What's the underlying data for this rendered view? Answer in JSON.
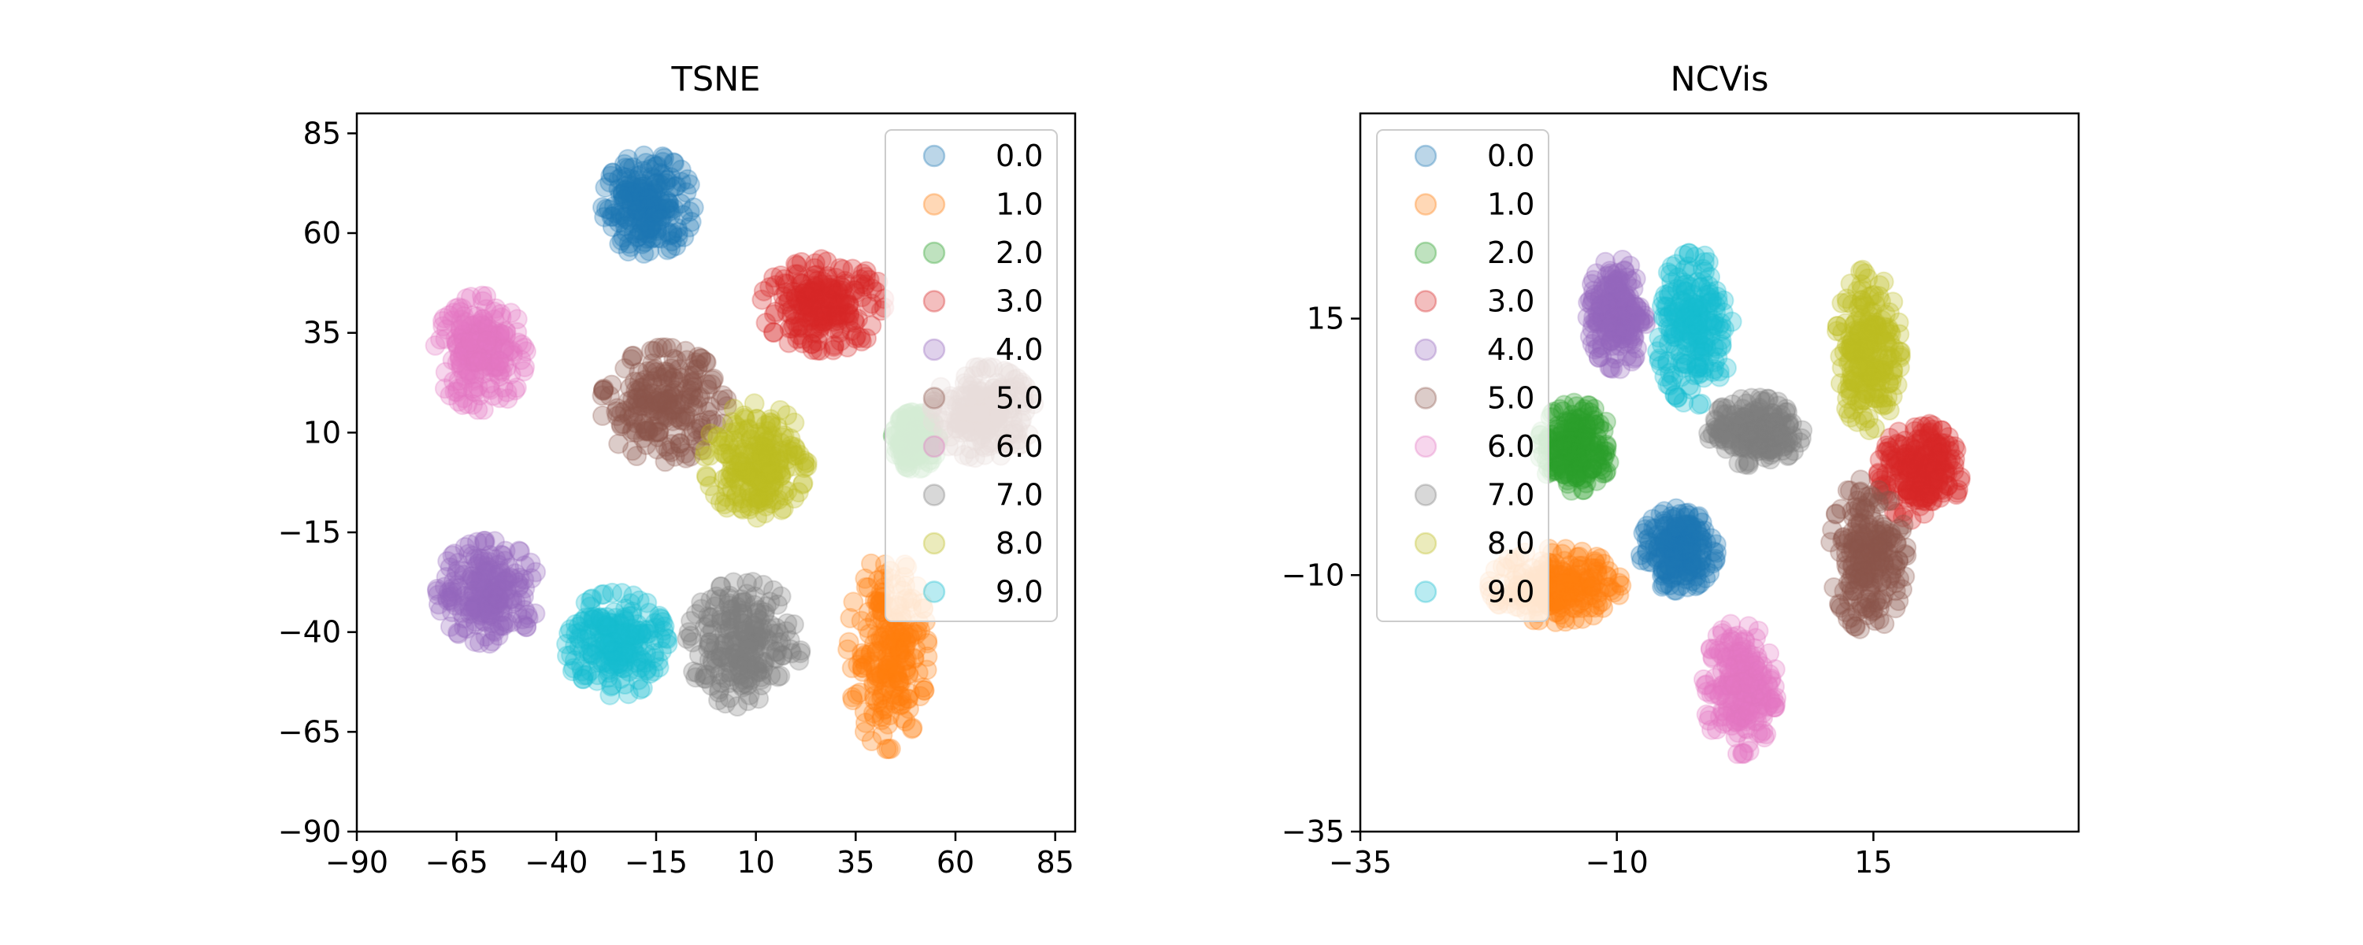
{
  "palette": [
    "#1f77b4",
    "#ff7f0e",
    "#2ca02c",
    "#d62728",
    "#9467bd",
    "#8c564b",
    "#e377c2",
    "#7f7f7f",
    "#bcbd22",
    "#17becf"
  ],
  "legend_labels": [
    "0.0",
    "1.0",
    "2.0",
    "3.0",
    "4.0",
    "5.0",
    "6.0",
    "7.0",
    "8.0",
    "9.0"
  ],
  "chart_data": [
    {
      "type": "scatter",
      "title": "TSNE",
      "xlabel": "",
      "ylabel": "",
      "xlim": [
        -90,
        90
      ],
      "ylim": [
        -90,
        90
      ],
      "xticks": [
        -90,
        -65,
        -40,
        -15,
        10,
        35,
        60,
        85
      ],
      "yticks": [
        -90,
        -65,
        -40,
        -15,
        10,
        35,
        60,
        85
      ],
      "xtick_labels": [
        "−90",
        "−65",
        "−40",
        "−15",
        "10",
        "35",
        "60",
        "85"
      ],
      "ytick_labels": [
        "−90",
        "−65",
        "−40",
        "−15",
        "10",
        "35",
        "60",
        "85"
      ],
      "grid": false,
      "legend": "top-right",
      "point_alpha": 0.3,
      "clusters": [
        {
          "label": "0.0",
          "center": [
            -17,
            67
          ],
          "spread": [
            8,
            9
          ]
        },
        {
          "label": "1.0",
          "center": [
            43,
            -45
          ],
          "spread": [
            7,
            17
          ]
        },
        {
          "label": "2.0",
          "center": [
            50,
            8
          ],
          "spread": [
            4,
            5
          ]
        },
        {
          "label": "3.0",
          "center": [
            27,
            42
          ],
          "spread": [
            11,
            8
          ]
        },
        {
          "label": "4.0",
          "center": [
            -57,
            -30
          ],
          "spread": [
            9,
            9
          ]
        },
        {
          "label": "5.0",
          "center": [
            -13,
            17
          ],
          "spread": [
            11,
            10
          ]
        },
        {
          "label": "6.0",
          "center": [
            -59,
            30
          ],
          "spread": [
            8,
            10
          ]
        },
        {
          "label": "7.0",
          "center": [
            7,
            -43
          ],
          "spread": [
            10,
            11
          ]
        },
        {
          "label": "8.0",
          "center": [
            10,
            3
          ],
          "spread": [
            9,
            10
          ]
        },
        {
          "label": "9.0",
          "center": [
            -25,
            -43
          ],
          "spread": [
            9,
            9
          ]
        },
        {
          "label": "5.0",
          "center": [
            67,
            15
          ],
          "spread": [
            9,
            8
          ]
        }
      ]
    },
    {
      "type": "scatter",
      "title": "NCVis",
      "xlabel": "",
      "ylabel": "",
      "xlim": [
        -35,
        35
      ],
      "ylim": [
        -35,
        35
      ],
      "xticks": [
        -35,
        -10,
        15
      ],
      "yticks": [
        -35,
        -10,
        15
      ],
      "xtick_labels": [
        "−35",
        "−10",
        "15"
      ],
      "ytick_labels": [
        "−35",
        "−10",
        "15"
      ],
      "grid": false,
      "legend": "top-left",
      "point_alpha": 0.3,
      "clusters": [
        {
          "label": "0.0",
          "center": [
            -4,
            -7.5
          ],
          "spread": [
            2.6,
            2.8
          ]
        },
        {
          "label": "1.0",
          "center": [
            -16,
            -11
          ],
          "spread": [
            4.5,
            2.5
          ]
        },
        {
          "label": "2.0",
          "center": [
            -14,
            2.5
          ],
          "spread": [
            2.5,
            3
          ]
        },
        {
          "label": "3.0",
          "center": [
            19.5,
            0
          ],
          "spread": [
            2.8,
            3.4
          ]
        },
        {
          "label": "4.0",
          "center": [
            -10,
            15.5
          ],
          "spread": [
            2,
            3.8
          ]
        },
        {
          "label": "5.0",
          "center": [
            14.5,
            -8
          ],
          "spread": [
            2.6,
            5.2
          ]
        },
        {
          "label": "6.0",
          "center": [
            2,
            -21
          ],
          "spread": [
            2.5,
            4.5
          ]
        },
        {
          "label": "7.0",
          "center": [
            3.5,
            4
          ],
          "spread": [
            3.2,
            2.3
          ]
        },
        {
          "label": "8.0",
          "center": [
            14.5,
            12
          ],
          "spread": [
            2.2,
            5.5
          ]
        },
        {
          "label": "9.0",
          "center": [
            -2.5,
            14
          ],
          "spread": [
            2.6,
            5.2
          ]
        }
      ]
    }
  ]
}
